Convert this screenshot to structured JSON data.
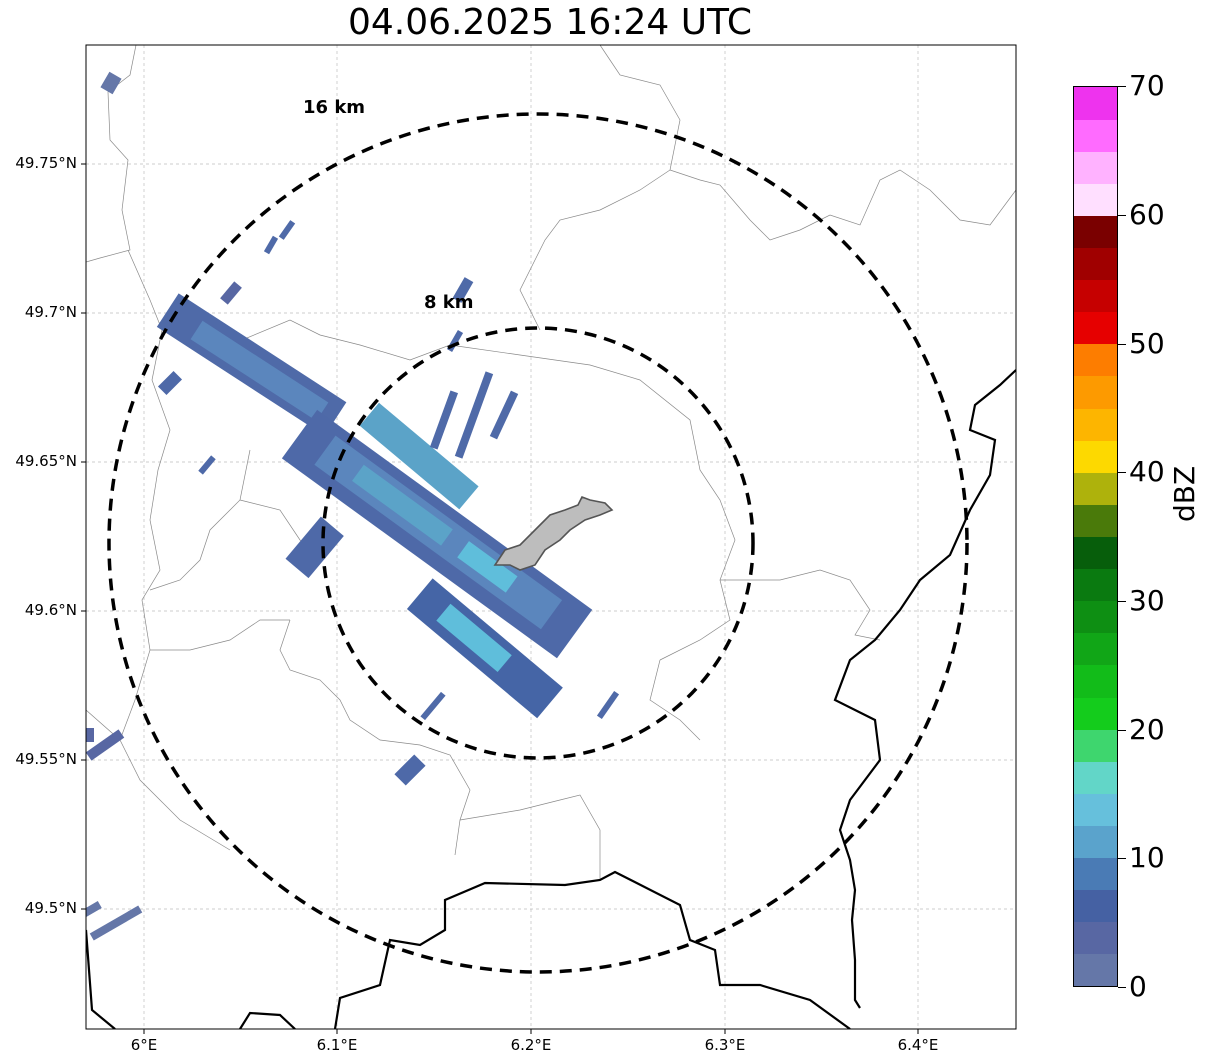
{
  "title": "04.06.2025 16:24 UTC",
  "map": {
    "lat_ticks": [
      "49.75°N",
      "49.7°N",
      "49.65°N",
      "49.6°N",
      "49.55°N",
      "49.5°N"
    ],
    "lon_ticks": [
      "6°E",
      "6.1°E",
      "6.2°E",
      "6.3°E",
      "6.4°E"
    ],
    "range_rings": [
      {
        "label": "16 km",
        "radius_km": 16
      },
      {
        "label": "8 km",
        "radius_km": 8
      }
    ],
    "ring_color": "#000000",
    "radar_echo_colors": [
      "#6577a8",
      "#4e69a8",
      "#4565a6",
      "#5b86bd",
      "#5ba3c8",
      "#5fbedb"
    ]
  },
  "colorbar": {
    "label": "dBZ",
    "min": 0,
    "max": 70,
    "tick_labels": [
      "0",
      "10",
      "20",
      "30",
      "40",
      "50",
      "60",
      "70"
    ],
    "colors": [
      "#6577a8",
      "#5867a3",
      "#4561a3",
      "#4a7bb5",
      "#5aa3cc",
      "#66c0dc",
      "#62d6c8",
      "#3ed66e",
      "#14cc1c",
      "#12bc19",
      "#11a617",
      "#0e8f13",
      "#0a7a10",
      "#075e0b",
      "#4a7a0a",
      "#aeb20c",
      "#fdd900",
      "#fdb500",
      "#fd9a00",
      "#fd7d00",
      "#e60000",
      "#c60000",
      "#a00000",
      "#7a0000",
      "#ffdfff",
      "#ffb2ff",
      "#ff6bff",
      "#ee33ee"
    ]
  }
}
